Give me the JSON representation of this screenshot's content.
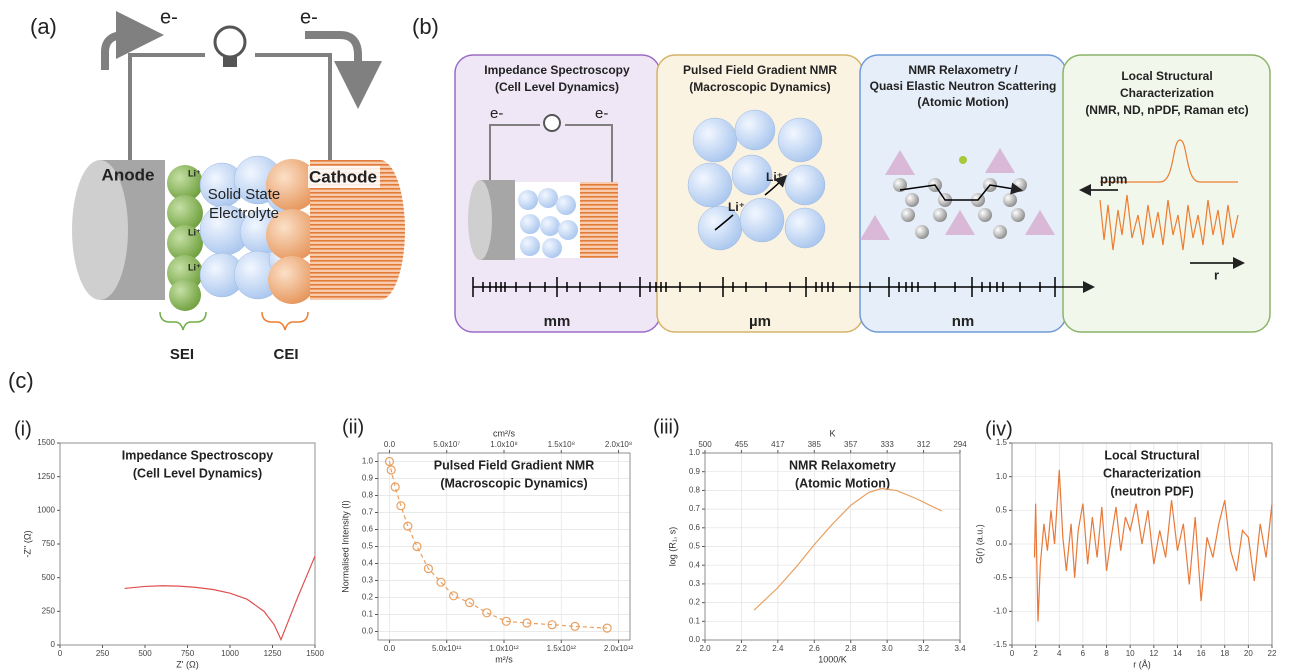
{
  "panel_a": {
    "label": "(a)",
    "electrons": [
      "e-",
      "e-"
    ],
    "anode": "Anode",
    "electrolyte": [
      "Solid State",
      "Electrolyte"
    ],
    "cathode": "Cathode",
    "ions": [
      "Li⁺",
      "Li⁺",
      "Li⁺"
    ],
    "interphases": [
      "SEI",
      "CEI"
    ]
  },
  "panel_b": {
    "label": "(b)",
    "techniques": [
      {
        "title": [
          "Impedance Spectroscopy",
          "(Cell Level Dynamics)"
        ],
        "scale": "mm"
      },
      {
        "title": [
          "Pulsed Field Gradient NMR",
          "(Macroscopic Dynamics)"
        ],
        "scale": "µm"
      },
      {
        "title": [
          "NMR Relaxometry /",
          "Quasi Elastic Neutron Scattering",
          "(Atomic Motion)"
        ],
        "scale": "nm"
      },
      {
        "title": [
          "Local Structural",
          "Characterization",
          "(NMR, ND, nPDF, Raman etc)"
        ]
      }
    ],
    "electrons": [
      "e-",
      "e-"
    ],
    "ions": [
      "Li⁺",
      "Li⁺"
    ],
    "spectrum_axes": [
      "ppm",
      "r"
    ]
  },
  "panel_c": {
    "label": "(c)"
  },
  "chart_data": [
    {
      "type": "line",
      "panel_label": "(i)",
      "title": [
        "Impedance Spectroscopy",
        "(Cell Level Dynamics)"
      ],
      "title_color": "#7030a0",
      "x_label": "Z' (Ω)",
      "y_label": "-Z'' (Ω)",
      "grid": false,
      "xlim": [
        0,
        1500
      ],
      "xticks": [
        0,
        250,
        500,
        750,
        1000,
        1250,
        1500
      ],
      "ylim": [
        0,
        1500
      ],
      "yticks": [
        0,
        250,
        500,
        750,
        1000,
        1250,
        1500
      ],
      "x": [
        380,
        500,
        600,
        700,
        800,
        900,
        1000,
        1100,
        1200,
        1260,
        1300,
        1350,
        1400,
        1450,
        1500
      ],
      "series": [
        {
          "color": "#e05050",
          "values": [
            420,
            435,
            440,
            437,
            428,
            412,
            385,
            340,
            250,
            150,
            40,
            200,
            360,
            510,
            660
          ]
        }
      ]
    },
    {
      "type": "scatter",
      "panel_label": "(ii)",
      "title": [
        "Pulsed Field Gradient NMR",
        "(Macroscopic Dynamics)"
      ],
      "title_color": "#bf9000",
      "x_label": "m²/s",
      "x2_label": "cm²/s",
      "y_label": "Normalised Intensity (I)",
      "grid": true,
      "dashed": true,
      "xlim": [
        -100000000000,
        2100000000000
      ],
      "xticks": [
        {
          "value": 0,
          "label": "0.0"
        },
        {
          "value": 500000000000,
          "label": "5.0x10¹¹"
        },
        {
          "value": 1000000000000,
          "label": "1.0x10¹²"
        },
        {
          "value": 1500000000000,
          "label": "1.5x10¹²"
        },
        {
          "value": 2000000000000,
          "label": "2.0x10¹²"
        }
      ],
      "x2lim": [
        -10000000,
        210000000
      ],
      "x2ticks": [
        {
          "value": 0,
          "label": "0.0"
        },
        {
          "value": 50000000,
          "label": "5.0x10⁷"
        },
        {
          "value": 100000000,
          "label": "1.0x10⁸"
        },
        {
          "value": 150000000,
          "label": "1.5x10⁸"
        },
        {
          "value": 200000000,
          "label": "2.0x10⁸"
        }
      ],
      "ylim": [
        -0.05,
        1.05
      ],
      "yticks": [
        {
          "value": 0,
          "label": "0.0"
        },
        0.1,
        0.2,
        0.3,
        0.4,
        0.5,
        0.6,
        0.7,
        0.8,
        0.9,
        {
          "value": 1,
          "label": "1.0"
        }
      ],
      "x": [
        0,
        15000000000,
        50000000000,
        100000000000,
        160000000000,
        240000000000,
        340000000000,
        450000000000,
        560000000000,
        700000000000,
        850000000000,
        1020000000000,
        1200000000000,
        1420000000000,
        1620000000000,
        1900000000000
      ],
      "series": [
        {
          "color": "#e8a060",
          "values": [
            1.0,
            0.95,
            0.85,
            0.74,
            0.62,
            0.5,
            0.37,
            0.29,
            0.21,
            0.17,
            0.11,
            0.06,
            0.05,
            0.04,
            0.03,
            0.02
          ]
        }
      ]
    },
    {
      "type": "line",
      "panel_label": "(iii)",
      "title": [
        "NMR Relaxometry",
        "(Atomic Motion)"
      ],
      "title_color": "#2f5597",
      "x_label": "1000/K",
      "x2_label": "K",
      "y_label": "log (R₁, s)",
      "grid": true,
      "xlim": [
        2.0,
        3.4
      ],
      "xticks": [
        {
          "value": 2,
          "label": "2.0"
        },
        2.2,
        2.4,
        2.6,
        2.8,
        {
          "value": 3,
          "label": "3.0"
        },
        3.2,
        3.4
      ],
      "x2lim": [
        2.0,
        3.4
      ],
      "x2ticks": [
        {
          "value": 2,
          "label": "500"
        },
        {
          "value": 2.2,
          "label": "455"
        },
        {
          "value": 2.4,
          "label": "417"
        },
        {
          "value": 2.6,
          "label": "385"
        },
        {
          "value": 2.8,
          "label": "357"
        },
        {
          "value": 3,
          "label": "333"
        },
        {
          "value": 3.2,
          "label": "312"
        },
        {
          "value": 3.4,
          "label": "294"
        }
      ],
      "ylim": [
        0.0,
        1.0
      ],
      "yticks": [
        {
          "value": 0,
          "label": "0.0"
        },
        0.1,
        0.2,
        0.3,
        0.4,
        0.5,
        0.6,
        0.7,
        0.8,
        0.9,
        {
          "value": 1,
          "label": "1.0"
        }
      ],
      "x": [
        2.27,
        2.4,
        2.5,
        2.6,
        2.7,
        2.8,
        2.9,
        2.97,
        3.05,
        3.15,
        3.3
      ],
      "series": [
        {
          "color": "#e8a060",
          "values": [
            0.16,
            0.28,
            0.39,
            0.51,
            0.62,
            0.72,
            0.79,
            0.81,
            0.8,
            0.76,
            0.69
          ]
        }
      ]
    },
    {
      "type": "line",
      "panel_label": "(iv)",
      "title": [
        "Local Structural",
        "Characterization",
        "(neutron PDF)"
      ],
      "title_color": "#548235",
      "x_label": "r (Å)",
      "y_label": "G(r) (a.u.)",
      "grid": true,
      "xlim": [
        0,
        22
      ],
      "xticks": [
        0,
        2,
        4,
        6,
        8,
        10,
        12,
        14,
        16,
        18,
        20,
        22
      ],
      "ylim": [
        -1.5,
        1.5
      ],
      "yticks": [
        -1.5,
        {
          "value": -1,
          "label": "-1.0"
        },
        -0.5,
        {
          "value": 0,
          "label": "0.0"
        },
        0.5,
        {
          "value": 1,
          "label": "1.0"
        },
        1.5
      ],
      "x": [
        1.9,
        2.0,
        2.2,
        2.4,
        2.7,
        3.0,
        3.3,
        3.6,
        4.0,
        4.3,
        4.6,
        5.0,
        5.3,
        5.6,
        6.0,
        6.4,
        6.8,
        7.2,
        7.6,
        8.0,
        8.4,
        8.8,
        9.2,
        9.6,
        10.0,
        10.5,
        11.0,
        11.5,
        12.0,
        12.5,
        13.0,
        13.5,
        14.0,
        14.5,
        15.0,
        15.5,
        16.0,
        16.5,
        17.0,
        17.5,
        18.0,
        18.5,
        19.0,
        19.5,
        20.0,
        20.5,
        21.0,
        21.5,
        22.0
      ],
      "series": [
        {
          "color": "#e8793a",
          "values": [
            -0.2,
            0.6,
            -1.15,
            -0.3,
            0.3,
            -0.1,
            0.5,
            0.0,
            1.1,
            0.1,
            -0.4,
            0.3,
            -0.5,
            0.2,
            0.6,
            -0.3,
            0.4,
            -0.2,
            0.55,
            -0.4,
            0.1,
            0.55,
            -0.1,
            0.4,
            0.2,
            0.6,
            0.0,
            0.5,
            -0.3,
            0.2,
            -0.2,
            0.65,
            -0.1,
            0.3,
            -0.6,
            0.4,
            -0.85,
            0.1,
            -0.2,
            0.3,
            0.65,
            -0.1,
            -0.4,
            0.2,
            0.1,
            -0.55,
            0.3,
            -0.2,
            0.6
          ]
        }
      ]
    }
  ]
}
